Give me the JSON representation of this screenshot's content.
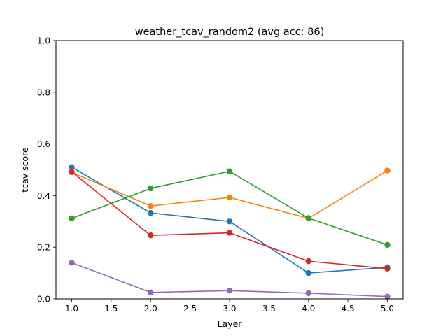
{
  "chart_data": {
    "type": "line",
    "title": "weather_tcav_random2 (avg acc: 86)",
    "xlabel": "Layer",
    "ylabel": "tcav score",
    "xlim": [
      0.8,
      5.2
    ],
    "ylim": [
      0.0,
      1.0
    ],
    "x": [
      1.0,
      2.0,
      3.0,
      4.0,
      5.0
    ],
    "x_ticks": [
      1.0,
      1.5,
      2.0,
      2.5,
      3.0,
      3.5,
      4.0,
      4.5,
      5.0
    ],
    "x_tick_labels": [
      "1.0",
      "1.5",
      "2.0",
      "2.5",
      "3.0",
      "3.5",
      "4.0",
      "4.5",
      "5.0"
    ],
    "y_ticks": [
      0.0,
      0.2,
      0.4,
      0.6,
      0.8,
      1.0
    ],
    "y_tick_labels": [
      "0.0",
      "0.2",
      "0.4",
      "0.6",
      "0.8",
      "1.0"
    ],
    "grid": false,
    "legend": "none",
    "series": [
      {
        "color": "#1f77b4",
        "values": [
          0.51,
          0.333,
          0.3,
          0.1,
          0.122
        ]
      },
      {
        "color": "#ff7f0e",
        "values": [
          0.49,
          0.36,
          0.393,
          0.312,
          0.497
        ]
      },
      {
        "color": "#2ca02c",
        "values": [
          0.312,
          0.428,
          0.494,
          0.313,
          0.209
        ]
      },
      {
        "color": "#d62728",
        "values": [
          0.492,
          0.246,
          0.256,
          0.146,
          0.117
        ]
      },
      {
        "color": "#9467bd",
        "values": [
          0.14,
          0.025,
          0.032,
          0.022,
          0.009
        ]
      }
    ]
  }
}
